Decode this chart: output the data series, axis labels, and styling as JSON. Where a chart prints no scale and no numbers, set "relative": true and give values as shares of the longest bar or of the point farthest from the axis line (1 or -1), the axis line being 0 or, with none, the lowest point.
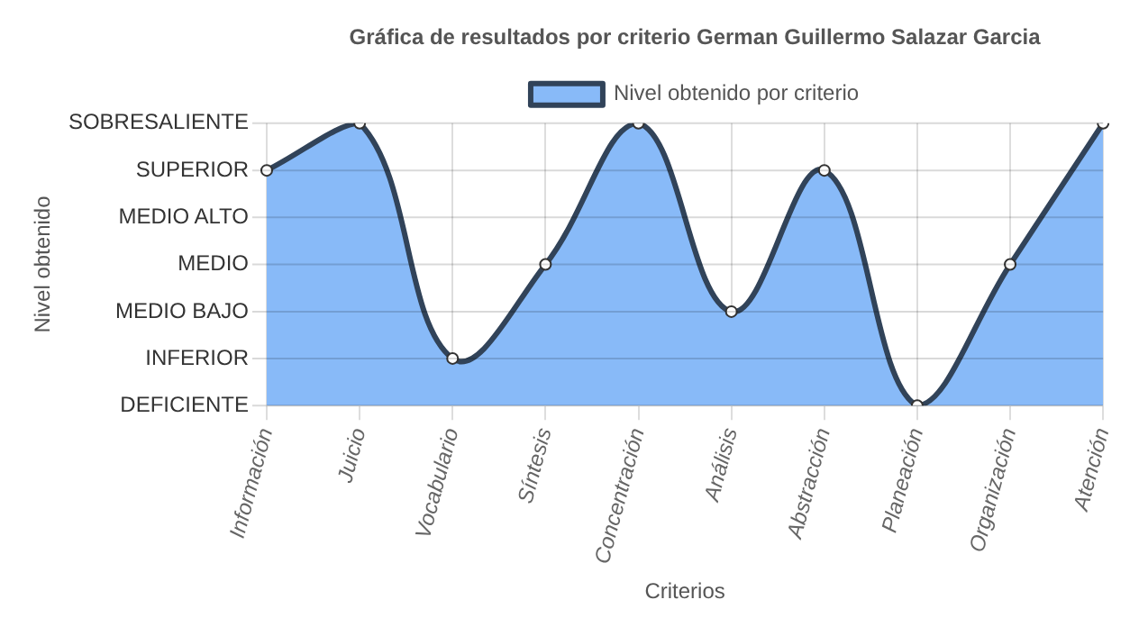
{
  "chart_data": {
    "type": "area",
    "title": "Gráfica de resultados por criterio German Guillermo Salazar Garcia",
    "xlabel": "Criterios",
    "annotations": [
      "Nivel obtenido"
    ],
    "categories": [
      "Información",
      "Juicio",
      "Vocabulario",
      "Síntesis",
      "Concentración",
      "Análisis",
      "Abstracción",
      "Planeación",
      "Organización",
      "Atención"
    ],
    "series": [
      {
        "name": "Nivel obtenido por criterio",
        "color": "#88baf8",
        "values": [
          0.833,
          1,
          0.167,
          0.5,
          1,
          0.333,
          0.833,
          0,
          0.5,
          1
        ]
      }
    ],
    "relative": true,
    "ref_lines": [
      {
        "axis": "y",
        "value": 0,
        "label": "DEFICIENTE"
      },
      {
        "axis": "y",
        "value": 0.167,
        "label": "INFERIOR"
      },
      {
        "axis": "y",
        "value": 0.333,
        "label": "MEDIO BAJO"
      },
      {
        "axis": "y",
        "value": 0.5,
        "label": "MEDIO"
      },
      {
        "axis": "y",
        "value": 0.667,
        "label": "MEDIO ALTO"
      },
      {
        "axis": "y",
        "value": 0.833,
        "label": "SUPERIOR"
      },
      {
        "axis": "y",
        "value": 1,
        "label": "SOBRESALIENTE"
      }
    ],
    "grid": "x",
    "legend": "top",
    "marker": "circle"
  }
}
